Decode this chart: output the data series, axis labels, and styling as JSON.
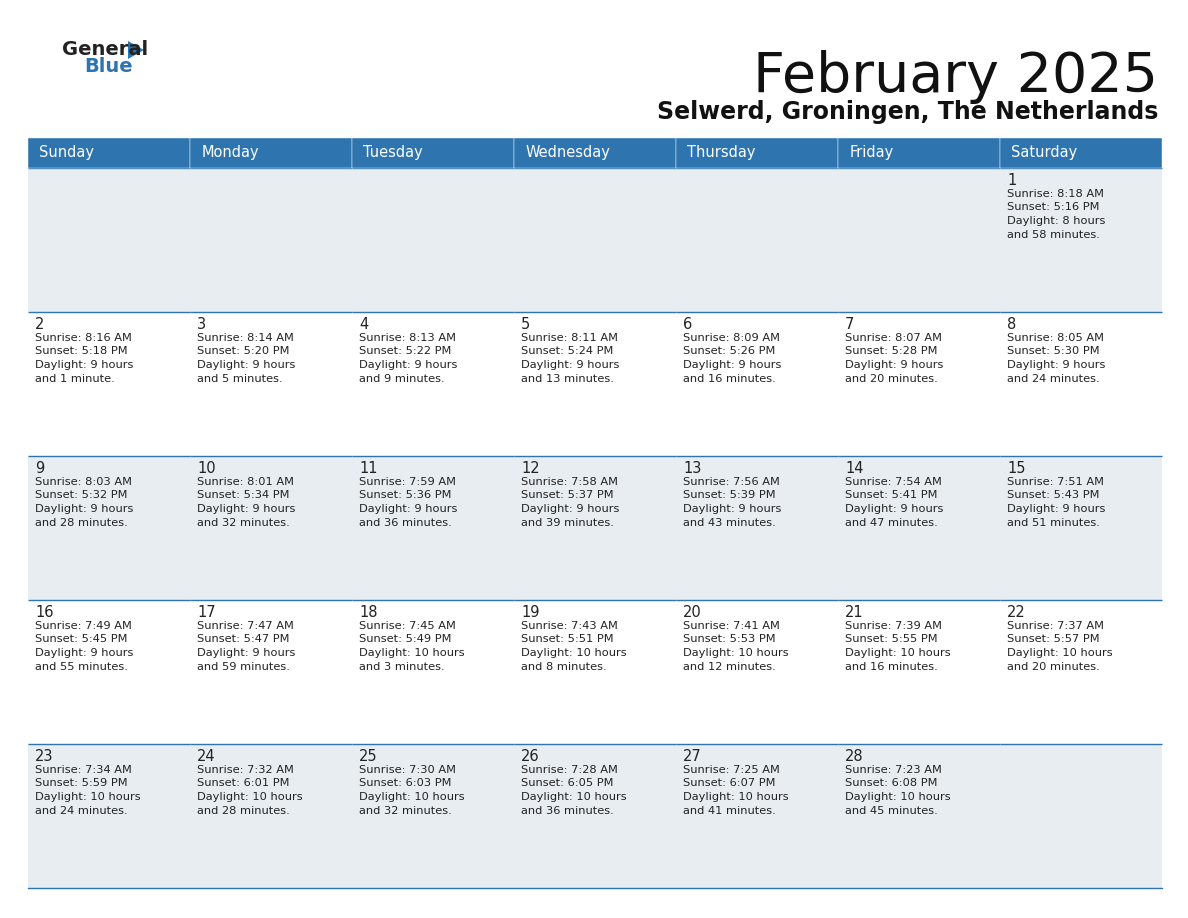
{
  "title": "February 2025",
  "subtitle": "Selwerd, Groningen, The Netherlands",
  "header_color": "#2e75b0",
  "header_text_color": "#ffffff",
  "border_color": "#2e75b0",
  "text_color": "#222222",
  "cell_bg_light": "#e8edf2",
  "cell_bg_white": "#ffffff",
  "days_of_week": [
    "Sunday",
    "Monday",
    "Tuesday",
    "Wednesday",
    "Thursday",
    "Friday",
    "Saturday"
  ],
  "calendar_data": [
    [
      null,
      null,
      null,
      null,
      null,
      null,
      {
        "day": "1",
        "sunrise": "8:18 AM",
        "sunset": "5:16 PM",
        "daylight_line1": "8 hours",
        "daylight_line2": "and 58 minutes."
      }
    ],
    [
      {
        "day": "2",
        "sunrise": "8:16 AM",
        "sunset": "5:18 PM",
        "daylight_line1": "9 hours",
        "daylight_line2": "and 1 minute."
      },
      {
        "day": "3",
        "sunrise": "8:14 AM",
        "sunset": "5:20 PM",
        "daylight_line1": "9 hours",
        "daylight_line2": "and 5 minutes."
      },
      {
        "day": "4",
        "sunrise": "8:13 AM",
        "sunset": "5:22 PM",
        "daylight_line1": "9 hours",
        "daylight_line2": "and 9 minutes."
      },
      {
        "day": "5",
        "sunrise": "8:11 AM",
        "sunset": "5:24 PM",
        "daylight_line1": "9 hours",
        "daylight_line2": "and 13 minutes."
      },
      {
        "day": "6",
        "sunrise": "8:09 AM",
        "sunset": "5:26 PM",
        "daylight_line1": "9 hours",
        "daylight_line2": "and 16 minutes."
      },
      {
        "day": "7",
        "sunrise": "8:07 AM",
        "sunset": "5:28 PM",
        "daylight_line1": "9 hours",
        "daylight_line2": "and 20 minutes."
      },
      {
        "day": "8",
        "sunrise": "8:05 AM",
        "sunset": "5:30 PM",
        "daylight_line1": "9 hours",
        "daylight_line2": "and 24 minutes."
      }
    ],
    [
      {
        "day": "9",
        "sunrise": "8:03 AM",
        "sunset": "5:32 PM",
        "daylight_line1": "9 hours",
        "daylight_line2": "and 28 minutes."
      },
      {
        "day": "10",
        "sunrise": "8:01 AM",
        "sunset": "5:34 PM",
        "daylight_line1": "9 hours",
        "daylight_line2": "and 32 minutes."
      },
      {
        "day": "11",
        "sunrise": "7:59 AM",
        "sunset": "5:36 PM",
        "daylight_line1": "9 hours",
        "daylight_line2": "and 36 minutes."
      },
      {
        "day": "12",
        "sunrise": "7:58 AM",
        "sunset": "5:37 PM",
        "daylight_line1": "9 hours",
        "daylight_line2": "and 39 minutes."
      },
      {
        "day": "13",
        "sunrise": "7:56 AM",
        "sunset": "5:39 PM",
        "daylight_line1": "9 hours",
        "daylight_line2": "and 43 minutes."
      },
      {
        "day": "14",
        "sunrise": "7:54 AM",
        "sunset": "5:41 PM",
        "daylight_line1": "9 hours",
        "daylight_line2": "and 47 minutes."
      },
      {
        "day": "15",
        "sunrise": "7:51 AM",
        "sunset": "5:43 PM",
        "daylight_line1": "9 hours",
        "daylight_line2": "and 51 minutes."
      }
    ],
    [
      {
        "day": "16",
        "sunrise": "7:49 AM",
        "sunset": "5:45 PM",
        "daylight_line1": "9 hours",
        "daylight_line2": "and 55 minutes."
      },
      {
        "day": "17",
        "sunrise": "7:47 AM",
        "sunset": "5:47 PM",
        "daylight_line1": "9 hours",
        "daylight_line2": "and 59 minutes."
      },
      {
        "day": "18",
        "sunrise": "7:45 AM",
        "sunset": "5:49 PM",
        "daylight_line1": "10 hours",
        "daylight_line2": "and 3 minutes."
      },
      {
        "day": "19",
        "sunrise": "7:43 AM",
        "sunset": "5:51 PM",
        "daylight_line1": "10 hours",
        "daylight_line2": "and 8 minutes."
      },
      {
        "day": "20",
        "sunrise": "7:41 AM",
        "sunset": "5:53 PM",
        "daylight_line1": "10 hours",
        "daylight_line2": "and 12 minutes."
      },
      {
        "day": "21",
        "sunrise": "7:39 AM",
        "sunset": "5:55 PM",
        "daylight_line1": "10 hours",
        "daylight_line2": "and 16 minutes."
      },
      {
        "day": "22",
        "sunrise": "7:37 AM",
        "sunset": "5:57 PM",
        "daylight_line1": "10 hours",
        "daylight_line2": "and 20 minutes."
      }
    ],
    [
      {
        "day": "23",
        "sunrise": "7:34 AM",
        "sunset": "5:59 PM",
        "daylight_line1": "10 hours",
        "daylight_line2": "and 24 minutes."
      },
      {
        "day": "24",
        "sunrise": "7:32 AM",
        "sunset": "6:01 PM",
        "daylight_line1": "10 hours",
        "daylight_line2": "and 28 minutes."
      },
      {
        "day": "25",
        "sunrise": "7:30 AM",
        "sunset": "6:03 PM",
        "daylight_line1": "10 hours",
        "daylight_line2": "and 32 minutes."
      },
      {
        "day": "26",
        "sunrise": "7:28 AM",
        "sunset": "6:05 PM",
        "daylight_line1": "10 hours",
        "daylight_line2": "and 36 minutes."
      },
      {
        "day": "27",
        "sunrise": "7:25 AM",
        "sunset": "6:07 PM",
        "daylight_line1": "10 hours",
        "daylight_line2": "and 41 minutes."
      },
      {
        "day": "28",
        "sunrise": "7:23 AM",
        "sunset": "6:08 PM",
        "daylight_line1": "10 hours",
        "daylight_line2": "and 45 minutes."
      },
      null
    ]
  ]
}
